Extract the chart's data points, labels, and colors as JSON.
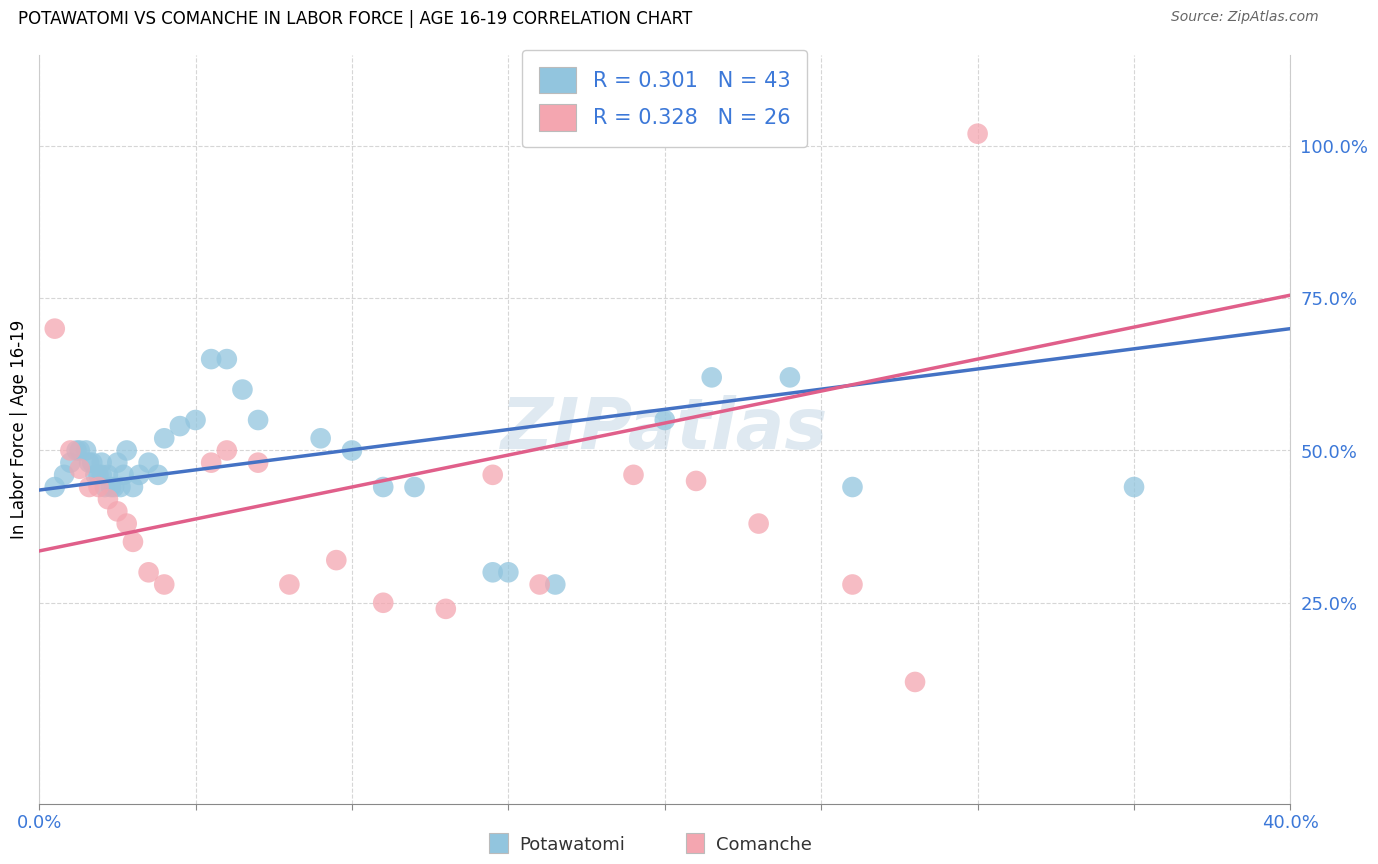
{
  "title": "POTAWATOMI VS COMANCHE IN LABOR FORCE | AGE 16-19 CORRELATION CHART",
  "source": "Source: ZipAtlas.com",
  "ylabel": "In Labor Force | Age 16-19",
  "xlim": [
    0.0,
    0.4
  ],
  "ylim": [
    -0.08,
    1.15
  ],
  "ytick_positions": [
    0.25,
    0.5,
    0.75,
    1.0
  ],
  "ytick_labels": [
    "25.0%",
    "50.0%",
    "75.0%",
    "100.0%"
  ],
  "potawatomi_color": "#92c5de",
  "comanche_color": "#f4a6b0",
  "potawatomi_line_color": "#4472c4",
  "comanche_line_color": "#e05f8a",
  "potawatomi_R": 0.301,
  "potawatomi_N": 43,
  "comanche_R": 0.328,
  "comanche_N": 26,
  "watermark": "ZIPatlas",
  "potawatomi_x": [
    0.005,
    0.008,
    0.01,
    0.012,
    0.013,
    0.015,
    0.016,
    0.017,
    0.018,
    0.019,
    0.02,
    0.02,
    0.021,
    0.022,
    0.023,
    0.024,
    0.025,
    0.026,
    0.027,
    0.028,
    0.03,
    0.032,
    0.035,
    0.038,
    0.04,
    0.045,
    0.05,
    0.055,
    0.06,
    0.065,
    0.07,
    0.09,
    0.1,
    0.11,
    0.12,
    0.145,
    0.15,
    0.165,
    0.2,
    0.215,
    0.24,
    0.26,
    0.35
  ],
  "potawatomi_y": [
    0.44,
    0.46,
    0.48,
    0.5,
    0.5,
    0.5,
    0.48,
    0.48,
    0.46,
    0.46,
    0.46,
    0.48,
    0.44,
    0.46,
    0.44,
    0.44,
    0.48,
    0.44,
    0.46,
    0.5,
    0.44,
    0.46,
    0.48,
    0.46,
    0.52,
    0.54,
    0.55,
    0.65,
    0.65,
    0.6,
    0.55,
    0.52,
    0.5,
    0.44,
    0.44,
    0.3,
    0.3,
    0.28,
    0.55,
    0.62,
    0.62,
    0.44,
    0.44
  ],
  "comanche_x": [
    0.005,
    0.01,
    0.013,
    0.016,
    0.019,
    0.022,
    0.025,
    0.028,
    0.03,
    0.035,
    0.04,
    0.055,
    0.06,
    0.07,
    0.08,
    0.095,
    0.11,
    0.13,
    0.145,
    0.16,
    0.19,
    0.21,
    0.23,
    0.26,
    0.28,
    0.3
  ],
  "comanche_y": [
    0.7,
    0.5,
    0.47,
    0.44,
    0.44,
    0.42,
    0.4,
    0.38,
    0.35,
    0.3,
    0.28,
    0.48,
    0.5,
    0.48,
    0.28,
    0.32,
    0.25,
    0.24,
    0.46,
    0.28,
    0.46,
    0.45,
    0.38,
    0.28,
    0.12,
    1.02
  ],
  "line_pot_x0": 0.0,
  "line_pot_y0": 0.435,
  "line_pot_x1": 0.4,
  "line_pot_y1": 0.7,
  "line_com_x0": 0.0,
  "line_com_y0": 0.335,
  "line_com_x1": 0.4,
  "line_com_y1": 0.755
}
